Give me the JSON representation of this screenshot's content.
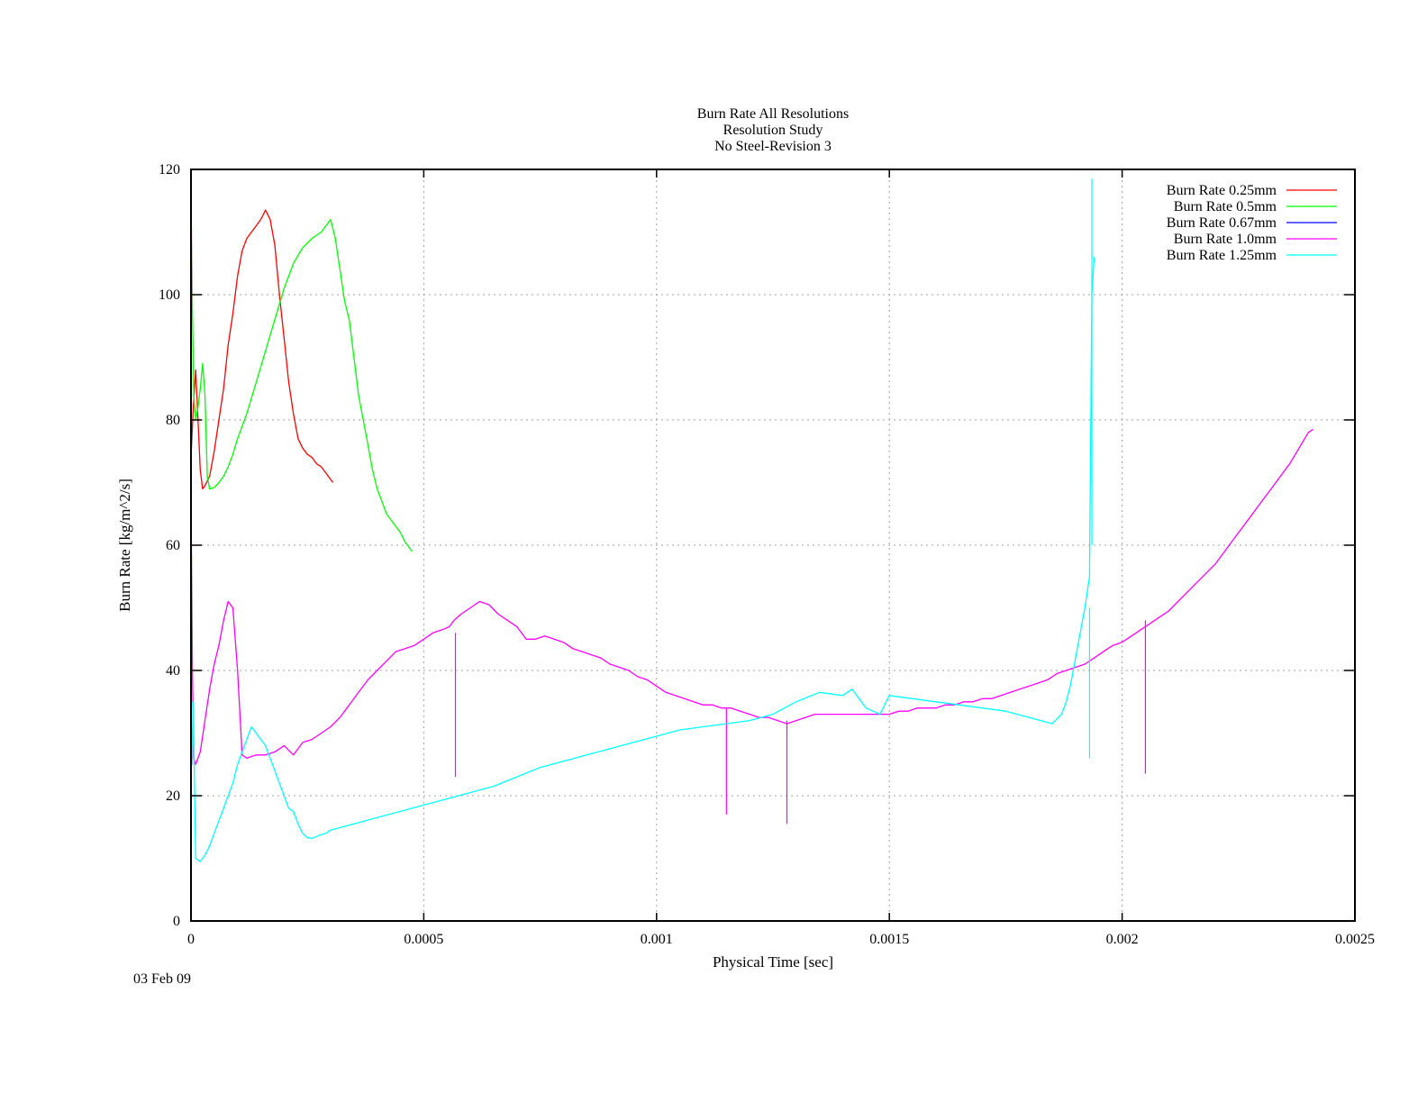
{
  "chart_data": {
    "type": "line",
    "title_lines": [
      "Burn Rate All Resolutions",
      "Resolution Study",
      "No Steel-Revision 3"
    ],
    "xlabel": "Physical Time [sec]",
    "ylabel": "Burn Rate [kg/m^2/s]",
    "xlabel_color": "#00ff00",
    "ylabel_color": "#ff0000",
    "xlim": [
      0,
      0.0025
    ],
    "ylim": [
      0,
      120
    ],
    "x_ticks": [
      0,
      0.0005,
      0.001,
      0.0015,
      0.002,
      0.0025
    ],
    "x_tick_labels": [
      "0",
      "0.0005",
      "0.001",
      "0.0015",
      "0.002",
      "0.0025"
    ],
    "y_ticks": [
      0,
      20,
      40,
      60,
      80,
      100,
      120
    ],
    "y_tick_labels": [
      "0",
      "20",
      "40",
      "60",
      "80",
      "100",
      "120"
    ],
    "grid": true,
    "legend_position": "top-right",
    "series": [
      {
        "name": "Burn Rate 0.25mm",
        "color": "#ff0000",
        "x": [
          0,
          5e-06,
          1e-05,
          1.5e-05,
          2e-05,
          2.5e-05,
          3e-05,
          4e-05,
          5e-05,
          6e-05,
          7e-05,
          8e-05,
          9e-05,
          0.0001,
          0.00011,
          0.00012,
          0.00013,
          0.00014,
          0.00015,
          0.00016,
          0.00017,
          0.00018,
          0.00019,
          0.0002,
          0.00021,
          0.00022,
          0.00023,
          0.00024,
          0.00025,
          0.00026,
          0.00027,
          0.00028,
          0.00029,
          0.0003,
          0.000305
        ],
        "y": [
          74,
          82,
          88,
          80,
          72,
          69,
          69.5,
          71,
          75,
          80,
          85,
          92,
          97,
          103,
          107,
          109,
          110,
          111,
          112,
          113.5,
          112,
          108,
          100,
          93,
          86,
          81,
          77,
          75.5,
          74.5,
          74,
          73,
          72.5,
          71.5,
          70.5,
          70
        ]
      },
      {
        "name": "Burn Rate 0.5mm",
        "color": "#00ff00",
        "x": [
          0,
          3e-06,
          6e-06,
          1e-05,
          1.5e-05,
          2e-05,
          2.5e-05,
          3e-05,
          3.5e-05,
          4e-05,
          5e-05,
          6e-05,
          7e-05,
          8e-05,
          9e-05,
          0.0001,
          0.00012,
          0.00014,
          0.00016,
          0.00018,
          0.0002,
          0.00022,
          0.00024,
          0.00026,
          0.00028,
          0.0003,
          0.00031,
          0.00032,
          0.00033,
          0.00034,
          0.00035,
          0.00036,
          0.00037,
          0.00038,
          0.00039,
          0.0004,
          0.00041,
          0.00042,
          0.00043,
          0.00044,
          0.00045,
          0.00046,
          0.000475
        ],
        "y": [
          116,
          98,
          84,
          80,
          82,
          85,
          89,
          84,
          71,
          69,
          69.2,
          70,
          71,
          72.5,
          74.5,
          77,
          81,
          86,
          91,
          96,
          101,
          105,
          107.5,
          109,
          110,
          112,
          109,
          104,
          99,
          96,
          90,
          84,
          80,
          76,
          72,
          69,
          67,
          65,
          64,
          63,
          62,
          60.5,
          59
        ]
      },
      {
        "name": "Burn Rate 0.67mm",
        "color": "#0000ff",
        "x": [],
        "y": []
      },
      {
        "name": "Burn Rate 1.0mm",
        "color": "#ff00ff",
        "x": [
          0,
          3e-06,
          6e-06,
          1e-05,
          2e-05,
          3e-05,
          4e-05,
          5e-05,
          6e-05,
          7e-05,
          8e-05,
          9e-05,
          0.0001,
          0.00011,
          0.00012,
          0.00014,
          0.00016,
          0.00018,
          0.0002,
          0.00022,
          0.00024,
          0.00026,
          0.00028,
          0.0003,
          0.00032,
          0.00034,
          0.00036,
          0.00038,
          0.0004,
          0.00042,
          0.00044,
          0.00046,
          0.00048,
          0.0005,
          0.00052,
          0.00054,
          0.000555,
          0.000565,
          0.00058,
          0.0006,
          0.00062,
          0.00064,
          0.00066,
          0.00068,
          0.0007,
          0.00072,
          0.00074,
          0.00076,
          0.00078,
          0.0008,
          0.00082,
          0.00084,
          0.00086,
          0.00088,
          0.0009,
          0.00092,
          0.00094,
          0.00096,
          0.00098,
          0.001,
          0.00102,
          0.00104,
          0.00106,
          0.00108,
          0.0011,
          0.00112,
          0.00114,
          0.00116,
          0.00118,
          0.0012,
          0.00122,
          0.00124,
          0.00126,
          0.00128,
          0.0013,
          0.00132,
          0.00134,
          0.00136,
          0.00138,
          0.0014,
          0.00142,
          0.00144,
          0.00146,
          0.00148,
          0.0015,
          0.00152,
          0.00154,
          0.00156,
          0.00158,
          0.0016,
          0.00162,
          0.00164,
          0.00166,
          0.00168,
          0.0017,
          0.00172,
          0.00174,
          0.00176,
          0.00178,
          0.0018,
          0.00182,
          0.00184,
          0.00186,
          0.00188,
          0.0019,
          0.00192,
          0.00194,
          0.00196,
          0.00198,
          0.002,
          0.00202,
          0.00204,
          0.00206,
          0.00208,
          0.0021,
          0.00212,
          0.00214,
          0.00216,
          0.00218,
          0.0022,
          0.00222,
          0.00224,
          0.00226,
          0.00228,
          0.0023,
          0.00232,
          0.00234,
          0.00236,
          0.00238,
          0.0024,
          0.00241
        ],
        "y": [
          68,
          40,
          26,
          25,
          27,
          32,
          37,
          41,
          44,
          48,
          51,
          50,
          40,
          26.5,
          26,
          26.5,
          26.5,
          27,
          28,
          26.5,
          28.5,
          29,
          30,
          31,
          32.5,
          34.5,
          36.5,
          38.5,
          40,
          41.5,
          43,
          43.5,
          44,
          45,
          46,
          46.5,
          47,
          48,
          49,
          50,
          51,
          50.5,
          49,
          48,
          47,
          45,
          45,
          45.5,
          45,
          44.5,
          43.5,
          43,
          42.5,
          42,
          41,
          40.5,
          40,
          39,
          38.5,
          37.5,
          36.5,
          36,
          35.5,
          35,
          34.5,
          34.5,
          34,
          34,
          33.5,
          33,
          32.5,
          32.5,
          32,
          31.5,
          32,
          32.5,
          33,
          33,
          33,
          33,
          33,
          33,
          33,
          33,
          33,
          33.5,
          33.5,
          34,
          34,
          34,
          34.5,
          34.5,
          35,
          35,
          35.5,
          35.5,
          36,
          36.5,
          37,
          37.5,
          38,
          38.5,
          39.5,
          40,
          40.5,
          41,
          42,
          43,
          44,
          44.5,
          45.5,
          46.5,
          47.5,
          48.5,
          49.5,
          51,
          52.5,
          54,
          55.5,
          57,
          59,
          61,
          63,
          65,
          67,
          69,
          71,
          73,
          75.5,
          78,
          78.5
        ],
        "dips": [
          {
            "x": 0.000568,
            "y_top": 46,
            "y_bottom": 23
          },
          {
            "x": 0.00115,
            "y_top": 34,
            "y_bottom": 17
          },
          {
            "x": 0.00128,
            "y_top": 32,
            "y_bottom": 15.5
          },
          {
            "x": 0.00205,
            "y_top": 48,
            "y_bottom": 23.5
          }
        ]
      },
      {
        "name": "Burn Rate 1.25mm",
        "color": "#00ffff",
        "x": [
          0,
          3e-06,
          5e-06,
          8e-06,
          1e-05,
          2e-05,
          3e-05,
          4e-05,
          5e-05,
          6e-05,
          7e-05,
          8e-05,
          9e-05,
          0.0001,
          0.00011,
          0.00012,
          0.00013,
          0.00014,
          0.00015,
          0.00016,
          0.00017,
          0.00018,
          0.00019,
          0.0002,
          0.00021,
          0.00022,
          0.00023,
          0.00024,
          0.00025,
          0.00026,
          0.00027,
          0.00028,
          0.00029,
          0.0003,
          0.00035,
          0.0004,
          0.00045,
          0.0005,
          0.00055,
          0.0006,
          0.00065,
          0.0007,
          0.00075,
          0.0008,
          0.00085,
          0.0009,
          0.00095,
          0.001,
          0.00105,
          0.0011,
          0.00115,
          0.0012,
          0.00125,
          0.0013,
          0.00135,
          0.0014,
          0.00142,
          0.00145,
          0.00148,
          0.0015,
          0.00155,
          0.0016,
          0.00165,
          0.0017,
          0.00175,
          0.0018,
          0.00185,
          0.00187,
          0.00188,
          0.00189,
          0.0019,
          0.00191,
          0.00192,
          0.00193,
          0.001935,
          0.00194
        ],
        "y": [
          36,
          25,
          35,
          20,
          10,
          9.5,
          10.5,
          12,
          14,
          16,
          18,
          20,
          22,
          25,
          27,
          29,
          31,
          30,
          29,
          28,
          26,
          24,
          22,
          20,
          18,
          17.5,
          15.5,
          14,
          13.3,
          13.2,
          13.5,
          13.8,
          14,
          14.5,
          15.5,
          16.5,
          17.5,
          18.5,
          19.5,
          20.5,
          21.5,
          23,
          24.5,
          25.5,
          26.5,
          27.5,
          28.5,
          29.5,
          30.5,
          31,
          31.5,
          32,
          33,
          35,
          36.5,
          36,
          37,
          34,
          33,
          36,
          35.5,
          35,
          34.5,
          34,
          33.5,
          32.5,
          31.5,
          33,
          35,
          38,
          42,
          46,
          50,
          55,
          100,
          106
        ],
        "dips": [
          {
            "x": 0.00193,
            "y_top": 50,
            "y_bottom": 26
          },
          {
            "x": 0.001935,
            "y_top": 118.5,
            "y_bottom": 60
          }
        ]
      }
    ]
  },
  "footer": {
    "date": "03 Feb 09"
  }
}
